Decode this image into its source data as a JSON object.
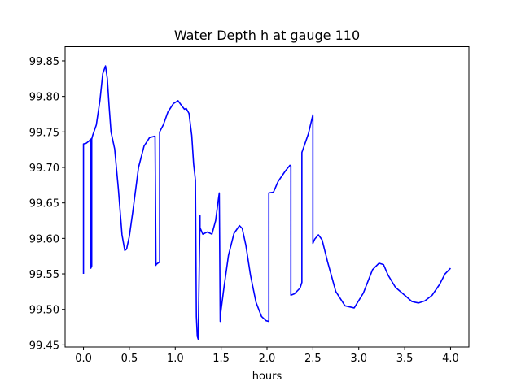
{
  "chart_data": {
    "type": "line",
    "title": "Water Depth h at gauge 110",
    "xlabel": "hours",
    "ylabel": "",
    "xlim": [
      -0.2,
      4.2
    ],
    "ylim": [
      99.447,
      99.87
    ],
    "xticks": [
      0.0,
      0.5,
      1.0,
      1.5,
      2.0,
      2.5,
      3.0,
      3.5,
      4.0
    ],
    "xtick_labels": [
      "0.0",
      "0.5",
      "1.0",
      "1.5",
      "2.0",
      "2.5",
      "3.0",
      "3.5",
      "4.0"
    ],
    "yticks": [
      99.45,
      99.5,
      99.55,
      99.6,
      99.65,
      99.7,
      99.75,
      99.8,
      99.85
    ],
    "ytick_labels": [
      "99.45",
      "99.50",
      "99.55",
      "99.60",
      "99.65",
      "99.70",
      "99.75",
      "99.80",
      "99.85"
    ],
    "grid": false,
    "legend": "none",
    "line_color": "#0000ff",
    "series": [
      {
        "x": [
          0.0,
          0.0,
          0.03,
          0.06,
          0.08,
          0.08,
          0.09,
          0.09,
          0.1,
          0.14,
          0.18,
          0.21,
          0.24,
          0.26,
          0.28,
          0.3,
          0.34,
          0.38,
          0.42,
          0.45,
          0.47,
          0.5,
          0.54,
          0.6,
          0.66,
          0.72,
          0.78,
          0.79,
          0.79,
          0.83,
          0.83,
          0.87,
          0.92,
          0.98,
          1.03,
          1.07,
          1.1,
          1.12,
          1.15,
          1.18,
          1.2,
          1.22,
          1.23,
          1.24,
          1.25,
          1.27,
          1.27,
          1.3,
          1.35,
          1.4,
          1.44,
          1.47,
          1.48,
          1.49,
          1.49,
          1.53,
          1.58,
          1.64,
          1.7,
          1.73,
          1.77,
          1.82,
          1.88,
          1.94,
          1.99,
          2.02,
          2.02,
          2.07,
          2.12,
          2.2,
          2.25,
          2.26,
          2.26,
          2.3,
          2.36,
          2.38,
          2.38,
          2.45,
          2.5,
          2.5,
          2.52,
          2.56,
          2.6,
          2.66,
          2.75,
          2.85,
          2.95,
          3.05,
          3.15,
          3.22,
          3.27,
          3.32,
          3.4,
          3.5,
          3.58,
          3.65,
          3.72,
          3.8,
          3.88,
          3.94,
          4.0
        ],
        "y": [
          99.55,
          99.733,
          99.734,
          99.737,
          99.74,
          99.558,
          99.561,
          99.74,
          99.745,
          99.76,
          99.795,
          99.832,
          99.843,
          99.825,
          99.785,
          99.75,
          99.726,
          99.67,
          99.605,
          99.583,
          99.585,
          99.603,
          99.64,
          99.7,
          99.73,
          99.742,
          99.744,
          99.562,
          99.563,
          99.567,
          99.75,
          99.76,
          99.778,
          99.79,
          99.794,
          99.787,
          99.782,
          99.783,
          99.776,
          99.745,
          99.705,
          99.682,
          99.49,
          99.462,
          99.458,
          99.632,
          99.615,
          99.606,
          99.609,
          99.606,
          99.625,
          99.655,
          99.664,
          99.483,
          99.49,
          99.53,
          99.576,
          99.607,
          99.618,
          99.614,
          99.59,
          99.548,
          99.51,
          99.49,
          99.484,
          99.483,
          99.664,
          99.665,
          99.68,
          99.695,
          99.703,
          99.702,
          99.52,
          99.522,
          99.53,
          99.538,
          99.721,
          99.747,
          99.774,
          99.593,
          99.599,
          99.605,
          99.598,
          99.567,
          99.525,
          99.505,
          99.502,
          99.523,
          99.556,
          99.565,
          99.563,
          99.548,
          99.531,
          99.52,
          99.511,
          99.509,
          99.512,
          99.52,
          99.535,
          99.55,
          99.558
        ]
      }
    ]
  }
}
